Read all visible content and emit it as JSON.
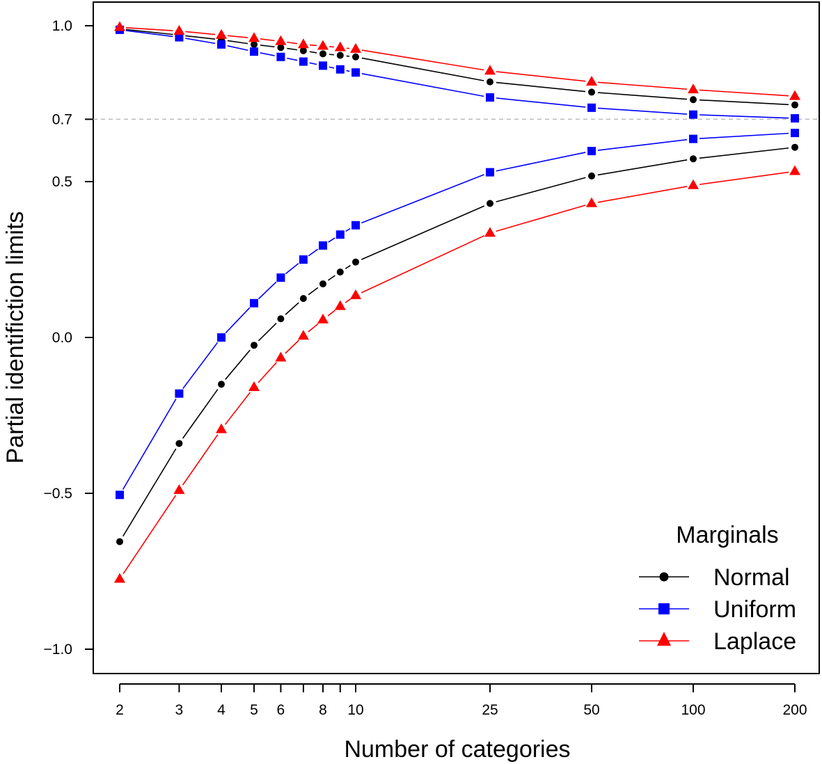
{
  "chart_data": {
    "type": "line",
    "xlabel": "Number of categories",
    "ylabel": "Partial identifiction limits",
    "x_scale": "log",
    "x": [
      2,
      3,
      4,
      5,
      6,
      7,
      8,
      9,
      10,
      25,
      50,
      100,
      200
    ],
    "x_tick_values": [
      2,
      3,
      4,
      5,
      6,
      8,
      10,
      25,
      50,
      100,
      200
    ],
    "x_tick_labels": [
      "2",
      "3",
      "4",
      "5",
      "6",
      "8",
      "10",
      "25",
      "50",
      "100",
      "200"
    ],
    "y_ticks": [
      1.0,
      0.7,
      0.5,
      0.0,
      -0.5,
      -1.0
    ],
    "y_tick_labels": [
      "1.0",
      "0.7",
      "0.5",
      "0.0",
      "−0.5",
      "−1.0"
    ],
    "ylim": [
      -1.08,
      1.07
    ],
    "reference_line": {
      "y": 0.7,
      "color": "#bbbbbb",
      "style": "dashed"
    },
    "legend": {
      "title": "Marginals",
      "position": "bottom-right"
    },
    "series": [
      {
        "name": "Normal",
        "color": "#000000",
        "marker": "circle",
        "upper": [
          0.99,
          0.97,
          0.955,
          0.94,
          0.93,
          0.92,
          0.91,
          0.905,
          0.9,
          0.82,
          0.787,
          0.763,
          0.746
        ],
        "lower": [
          -0.655,
          -0.34,
          -0.15,
          -0.025,
          0.06,
          0.125,
          0.172,
          0.21,
          0.242,
          0.43,
          0.518,
          0.573,
          0.61
        ]
      },
      {
        "name": "Uniform",
        "color": "#0000ff",
        "marker": "square",
        "upper": [
          0.987,
          0.963,
          0.94,
          0.917,
          0.9,
          0.885,
          0.872,
          0.86,
          0.85,
          0.77,
          0.737,
          0.715,
          0.703
        ],
        "lower": [
          -0.505,
          -0.18,
          0.0,
          0.11,
          0.192,
          0.25,
          0.295,
          0.33,
          0.36,
          0.53,
          0.598,
          0.637,
          0.656
        ]
      },
      {
        "name": "Laplace",
        "color": "#ff0000",
        "marker": "triangle",
        "upper": [
          0.995,
          0.983,
          0.97,
          0.96,
          0.95,
          0.94,
          0.935,
          0.93,
          0.925,
          0.855,
          0.82,
          0.795,
          0.774
        ],
        "lower": [
          -0.775,
          -0.49,
          -0.295,
          -0.16,
          -0.065,
          0.005,
          0.057,
          0.1,
          0.135,
          0.335,
          0.43,
          0.488,
          0.533
        ]
      }
    ]
  }
}
